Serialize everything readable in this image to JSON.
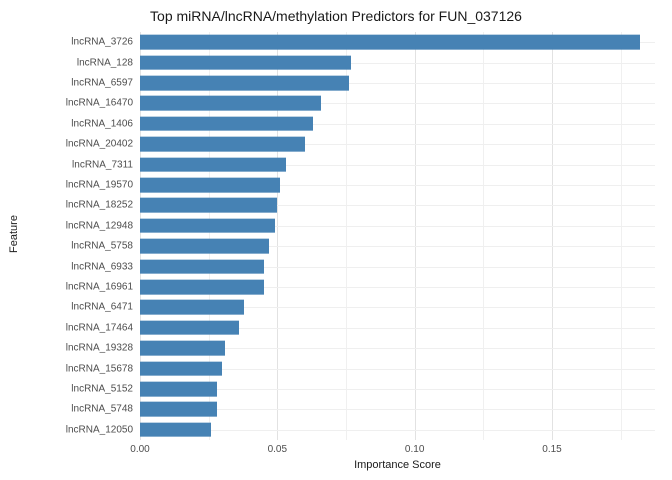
{
  "chart_data": {
    "type": "bar",
    "orientation": "horizontal",
    "title": "Top miRNA/lncRNA/methylation Predictors for FUN_037126",
    "xlabel": "Importance Score",
    "ylabel": "Feature",
    "categories": [
      "lncRNA_3726",
      "lncRNA_128",
      "lncRNA_6597",
      "lncRNA_16470",
      "lncRNA_1406",
      "lncRNA_20402",
      "lncRNA_7311",
      "lncRNA_19570",
      "lncRNA_18252",
      "lncRNA_12948",
      "lncRNA_5758",
      "lncRNA_6933",
      "lncRNA_16961",
      "lncRNA_6471",
      "lncRNA_17464",
      "lncRNA_19328",
      "lncRNA_15678",
      "lncRNA_5152",
      "lncRNA_5748",
      "lncRNA_12050"
    ],
    "values": [
      0.182,
      0.077,
      0.076,
      0.066,
      0.063,
      0.06,
      0.053,
      0.051,
      0.05,
      0.049,
      0.047,
      0.045,
      0.045,
      0.038,
      0.036,
      0.031,
      0.03,
      0.028,
      0.028,
      0.026
    ],
    "xlim": [
      0,
      0.1875
    ],
    "xticks": [
      0,
      0.05,
      0.1,
      0.15
    ],
    "xticks_minor": [
      0.025,
      0.075,
      0.125,
      0.175
    ],
    "bar_color": "#4682b4",
    "grid": true,
    "legend_position": "none"
  }
}
